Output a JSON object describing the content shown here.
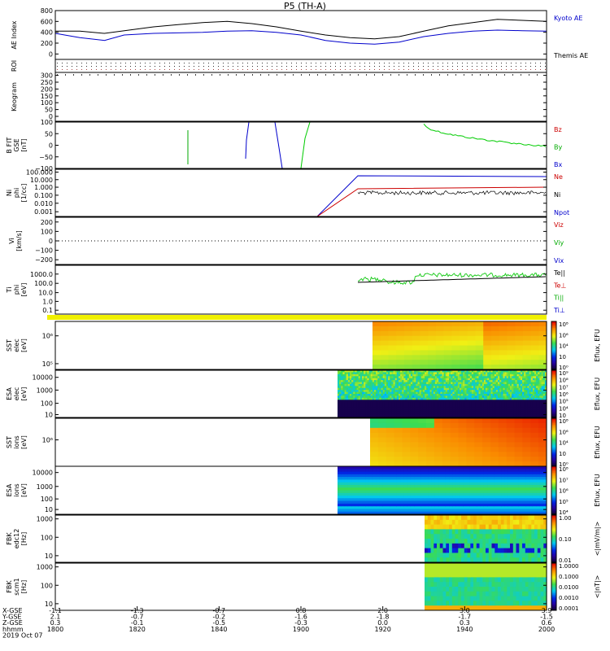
{
  "chart_data": {
    "type": "multi-panel",
    "title": "P5 (TH-A)",
    "date": "2019 Oct 07",
    "panels": [
      {
        "id": "ae",
        "type": "line",
        "ylabel": "AE Index",
        "ylim": [
          -100,
          800
        ],
        "yticks": [
          "800",
          "600",
          "400",
          "200",
          "0"
        ],
        "ytick_values": [
          800,
          600,
          400,
          200,
          0
        ],
        "legend": [
          "Kyoto AE",
          "Themis AE"
        ],
        "legend_colors": [
          "#0000cc",
          "#000000"
        ],
        "series": [
          {
            "name": "Kyoto AE",
            "color": "#0000cc",
            "x": [
              0,
              0.05,
              0.1,
              0.14,
              0.2,
              0.3,
              0.35,
              0.4,
              0.45,
              0.5,
              0.55,
              0.6,
              0.65,
              0.7,
              0.75,
              0.8,
              0.85,
              0.9,
              0.95,
              1.0
            ],
            "values": [
              380,
              300,
              250,
              350,
              380,
              400,
              420,
              430,
              400,
              350,
              250,
              200,
              180,
              220,
              320,
              380,
              420,
              440,
              430,
              420
            ]
          },
          {
            "name": "Themis AE",
            "color": "#000000",
            "x": [
              0,
              0.05,
              0.1,
              0.15,
              0.2,
              0.25,
              0.3,
              0.35,
              0.4,
              0.45,
              0.5,
              0.55,
              0.6,
              0.65,
              0.7,
              0.75,
              0.8,
              0.85,
              0.9,
              0.95,
              1.0
            ],
            "values": [
              420,
              420,
              380,
              440,
              500,
              540,
              580,
              600,
              560,
              500,
              420,
              350,
              300,
              280,
              320,
              420,
              520,
              580,
              640,
              620,
              600
            ]
          }
        ]
      },
      {
        "id": "roi",
        "type": "dotted",
        "ylabel": "ROI"
      },
      {
        "id": "keogram",
        "type": "image",
        "ylabel": "Keogram",
        "yticks": [
          "300",
          "250",
          "200",
          "150",
          "100",
          "50",
          "0"
        ]
      },
      {
        "id": "bfield",
        "type": "line",
        "ylabel": "B FIT\nGSE\n[nT]",
        "ylim": [
          -100,
          100
        ],
        "yticks": [
          "100",
          "50",
          "0",
          "−50",
          "−100"
        ],
        "ytick_values": [
          100,
          50,
          0,
          -50,
          -100
        ],
        "legend": [
          "Bz",
          "By",
          "Bx"
        ],
        "legend_colors": [
          "#cc0000",
          "#00aa00",
          "#0000cc"
        ]
      },
      {
        "id": "ni",
        "type": "line",
        "ylabel": "Ni\nphi\n[1/cc]",
        "yticks": [
          "100.000",
          "10.000",
          "1.000",
          "0.100",
          "0.010",
          "0.001"
        ],
        "legend": [
          "Ne",
          "Ni",
          "Npot"
        ],
        "legend_colors": [
          "#cc0000",
          "#000000",
          "#0000cc"
        ]
      },
      {
        "id": "vi",
        "type": "line",
        "ylabel": "Vi\n[km/s]",
        "ylim": [
          -250,
          250
        ],
        "yticks": [
          "200",
          "100",
          "0",
          "−100",
          "−200"
        ],
        "ytick_values": [
          200,
          100,
          0,
          -100,
          -200
        ],
        "legend": [
          "Viz",
          "Viy",
          "Vix"
        ],
        "legend_colors": [
          "#cc0000",
          "#00aa00",
          "#0000cc"
        ]
      },
      {
        "id": "ti",
        "type": "line",
        "ylabel": "Ti\nphi\n[eV]",
        "yticks": [
          "1000.0",
          "100.0",
          "10.0",
          "1.0",
          "0.1"
        ],
        "legend": [
          "Te||",
          "Te⊥",
          "Ti||",
          "Ti⊥"
        ],
        "legend_colors": [
          "#000000",
          "#cc0000",
          "#00aa00",
          "#0000cc"
        ]
      },
      {
        "id": "sst_e",
        "type": "heatmap",
        "ylabel": "SST\nelec\n[eV]",
        "yticks": [
          "10⁶",
          "10⁵"
        ],
        "cbar": {
          "label": "Eflux, EFU",
          "ticks": [
            "10⁸",
            "10⁶",
            "10⁴",
            "10⁲",
            "10⁰"
          ]
        }
      },
      {
        "id": "esa_e",
        "type": "heatmap",
        "ylabel": "ESA\nelec\n[eV]",
        "yticks": [
          "10000",
          "1000",
          "100",
          "10"
        ],
        "cbar": {
          "label": "Eflux, EFU",
          "ticks": [
            "10⁹",
            "10⁸",
            "10⁷",
            "10⁶",
            "10⁵",
            "10⁴",
            "10⁳"
          ]
        }
      },
      {
        "id": "sst_i",
        "type": "heatmap",
        "ylabel": "SST\nions\n[eV]",
        "yticks": [
          "10⁶"
        ],
        "cbar": {
          "label": "Eflux, EFU",
          "ticks": [
            "10⁸",
            "10⁶",
            "10⁴",
            "10⁲",
            "10⁰"
          ]
        }
      },
      {
        "id": "esa_i",
        "type": "heatmap",
        "ylabel": "ESA\nions\n[eV]",
        "yticks": [
          "10000",
          "1000",
          "100",
          "10"
        ],
        "cbar": {
          "label": "Eflux, EFU",
          "ticks": [
            "10⁸",
            "10⁷",
            "10⁶",
            "10⁵",
            "10⁴"
          ]
        }
      },
      {
        "id": "fbk_e",
        "type": "heatmap",
        "ylabel": "FBK\nedc12\n[Hz]",
        "yticks": [
          "1000",
          "100",
          "10"
        ],
        "cbar": {
          "label": "<|mV/m|>",
          "ticks": [
            "1.00",
            "0.10",
            "0.01"
          ]
        }
      },
      {
        "id": "fbk_b",
        "type": "heatmap",
        "ylabel": "FBK\nscm1\n[Hz]",
        "yticks": [
          "1000",
          "100",
          "10"
        ],
        "cbar": {
          "label": "<|nT|>",
          "ticks": [
            "1.0000",
            "0.1000",
            "0.0100",
            "0.0010",
            "0.0001"
          ]
        }
      }
    ],
    "xaxis": {
      "row_labels": [
        "X-GSE",
        "Y-GSE",
        "Z-GSE",
        "hhmm",
        "2019 Oct 07"
      ],
      "ticks": [
        {
          "x": "-1.1",
          "y": "2.1",
          "z": "0.3",
          "t": "1800"
        },
        {
          "x": "-1.3",
          "y": "-0.7",
          "z": "-0.1",
          "t": "1820"
        },
        {
          "x": "-0.7",
          "y": "-0.2",
          "z": "-0.5",
          "t": "1840"
        },
        {
          "x": "0.8",
          "y": "-1.6",
          "z": "-0.3",
          "t": "1900"
        },
        {
          "x": "2.0",
          "y": "-1.8",
          "z": "0.0",
          "t": "1920"
        },
        {
          "x": "3.0",
          "y": "-1.7",
          "z": "0.3",
          "t": "1940"
        },
        {
          "x": "3.9",
          "y": "-1.5",
          "z": "0.6",
          "t": "2000"
        }
      ]
    }
  }
}
